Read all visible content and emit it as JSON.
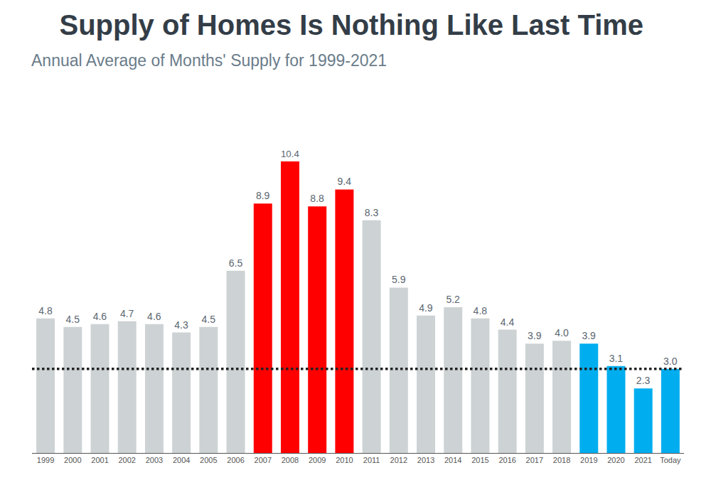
{
  "chart_data": {
    "type": "bar",
    "title": "Supply of Homes Is Nothing Like Last Time",
    "subtitle": "Annual Average of Months' Supply for 1999-2021",
    "categories": [
      "1999",
      "2000",
      "2001",
      "2002",
      "2003",
      "2004",
      "2005",
      "2006",
      "2007",
      "2008",
      "2009",
      "2010",
      "2011",
      "2012",
      "2013",
      "2014",
      "2015",
      "2016",
      "2017",
      "2018",
      "2019",
      "2020",
      "2021",
      "Today"
    ],
    "values": [
      4.8,
      4.5,
      4.6,
      4.7,
      4.6,
      4.3,
      4.5,
      6.5,
      8.9,
      10.4,
      8.8,
      9.4,
      8.3,
      5.9,
      4.9,
      5.2,
      4.8,
      4.4,
      3.9,
      4.0,
      3.9,
      3.1,
      2.3,
      3.0
    ],
    "value_labels": [
      "4.8",
      "4.5",
      "4.6",
      "4.7",
      "4.6",
      "4.3",
      "4.5",
      "6.5",
      "8.9",
      "10.4",
      "8.8",
      "9.4",
      "8.3",
      "5.9",
      "4.9",
      "5.2",
      "4.8",
      "4.4",
      "3.9",
      "4.0",
      "3.9",
      "3.1",
      "2.3",
      "3.0"
    ],
    "colors": [
      "#cdd3d5",
      "#cdd3d5",
      "#cdd3d5",
      "#cdd3d5",
      "#cdd3d5",
      "#cdd3d5",
      "#cdd3d5",
      "#cdd3d5",
      "#ff0000",
      "#ff0000",
      "#ff0000",
      "#ff0000",
      "#cdd3d5",
      "#cdd3d5",
      "#cdd3d5",
      "#cdd3d5",
      "#cdd3d5",
      "#cdd3d5",
      "#cdd3d5",
      "#cdd3d5",
      "#00aeef",
      "#00aeef",
      "#00aeef",
      "#00aeef"
    ],
    "reference_line": 3.0,
    "ylim": [
      0,
      12
    ],
    "yticks": [],
    "grid": false,
    "data_labels": true,
    "tick_labels": "x"
  }
}
